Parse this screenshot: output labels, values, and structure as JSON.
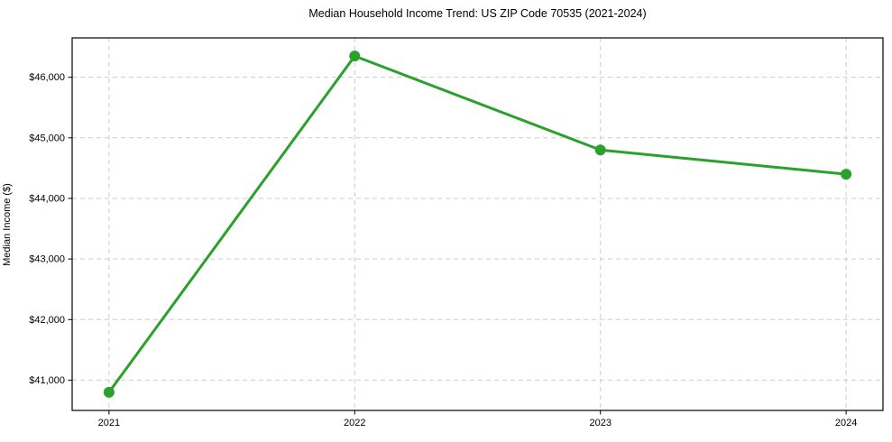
{
  "chart_data": {
    "type": "line",
    "title": "Median Household Income Trend: US ZIP Code 70535 (2021-2024)",
    "xlabel": "",
    "ylabel": "Median Income ($)",
    "categories": [
      2021,
      2022,
      2023,
      2024
    ],
    "x_tick_labels": [
      "2021",
      "2022",
      "2023",
      "2024"
    ],
    "series": [
      {
        "name": "median-household-income",
        "values": [
          40800,
          46350,
          44800,
          44400
        ],
        "color": "#2ca02c",
        "marker": "circle"
      }
    ],
    "y_ticks": [
      {
        "value": 41000,
        "label": "$41,000"
      },
      {
        "value": 42000,
        "label": "$42,000"
      },
      {
        "value": 43000,
        "label": "$43,000"
      },
      {
        "value": 44000,
        "label": "$44,000"
      },
      {
        "value": 45000,
        "label": "$45,000"
      },
      {
        "value": 46000,
        "label": "$46,000"
      }
    ],
    "xlim": [
      2020.85,
      2024.15
    ],
    "ylim": [
      40500,
      46650
    ],
    "grid": true,
    "grid_style": "dashed",
    "grid_color": "#cccccc",
    "spine_color": "#000000",
    "background_color": "#ffffff",
    "legend_position": "none"
  }
}
